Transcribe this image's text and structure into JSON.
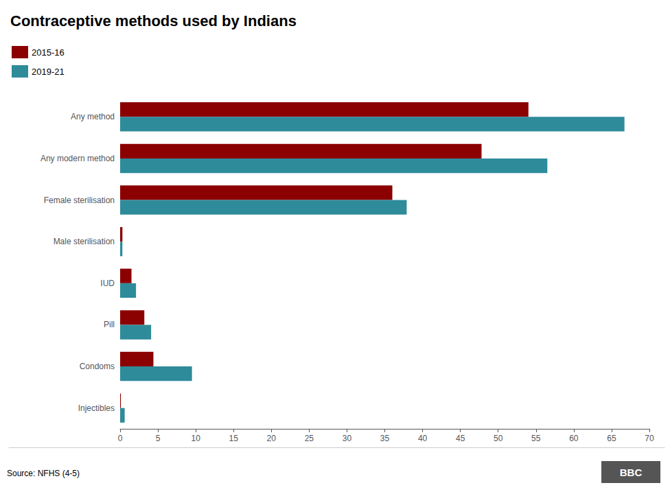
{
  "chart_data": {
    "type": "bar",
    "orientation": "horizontal",
    "title": "Contraceptive methods used by Indians",
    "categories": [
      "Any method",
      "Any modern method",
      "Female sterilisation",
      "Male sterilisation",
      "IUD",
      "Pill",
      "Condoms",
      "Injectibles"
    ],
    "series": [
      {
        "name": "2015-16",
        "color": "#8B0000",
        "values": [
          54.0,
          47.8,
          36.0,
          0.3,
          1.5,
          3.2,
          4.4,
          0.1
        ]
      },
      {
        "name": "2019-21",
        "color": "#2E8B9A",
        "values": [
          66.7,
          56.5,
          37.9,
          0.3,
          2.1,
          4.1,
          9.5,
          0.6
        ]
      }
    ],
    "xlim": [
      0,
      70
    ],
    "xticks": [
      0,
      5,
      10,
      15,
      20,
      25,
      30,
      35,
      40,
      45,
      50,
      55,
      60,
      65,
      70
    ],
    "grid": false,
    "legend": "upper left",
    "source": "Source: NFHS (4-5)",
    "logo": "BBC"
  }
}
